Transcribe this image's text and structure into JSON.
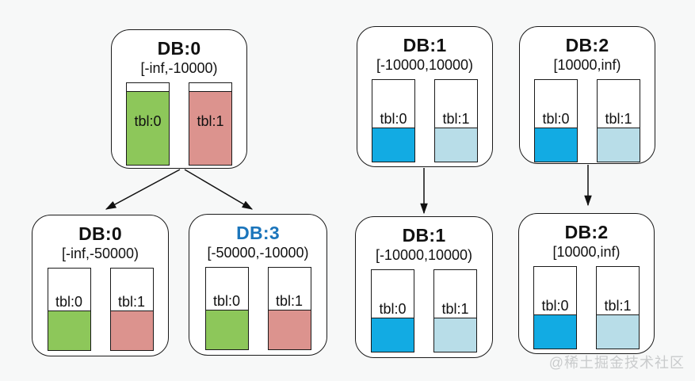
{
  "colors": {
    "green": "#8dc75a",
    "pink": "#dc938e",
    "blue": "#12abe3",
    "light_blue": "#b8dde8",
    "db3_title_blue": "#1b75bb",
    "background": "#f7f8f8",
    "box_border": "#1a1a1a"
  },
  "nodes": {
    "top_db0": {
      "title": "DB:0",
      "range": "[-inf,-10000)",
      "tables": [
        {
          "label": "tbl:0",
          "color": "#8dc75a",
          "fill_pct": 90
        },
        {
          "label": "tbl:1",
          "color": "#dc938e",
          "fill_pct": 90
        }
      ]
    },
    "top_db1": {
      "title": "DB:1",
      "range": "[-10000,10000)",
      "tables": [
        {
          "label": "tbl:0",
          "color": "#12abe3",
          "fill_pct": 42
        },
        {
          "label": "tbl:1",
          "color": "#b8dde8",
          "fill_pct": 42
        }
      ]
    },
    "top_db2": {
      "title": "DB:2",
      "range": "[10000,inf)",
      "tables": [
        {
          "label": "tbl:0",
          "color": "#12abe3",
          "fill_pct": 42
        },
        {
          "label": "tbl:1",
          "color": "#b8dde8",
          "fill_pct": 42
        }
      ]
    },
    "bottom_db0": {
      "title": "DB:0",
      "range": "[-inf,-50000)",
      "tables": [
        {
          "label": "tbl:0",
          "color": "#8dc75a",
          "fill_pct": 49
        },
        {
          "label": "tbl:1",
          "color": "#dc938e",
          "fill_pct": 49
        }
      ]
    },
    "bottom_db3": {
      "title": "DB:3",
      "title_color": "#1b75bb",
      "range": "[-50000,-10000)",
      "tables": [
        {
          "label": "tbl:0",
          "color": "#8dc75a",
          "fill_pct": 49
        },
        {
          "label": "tbl:1",
          "color": "#dc938e",
          "fill_pct": 49
        }
      ]
    },
    "bottom_db1": {
      "title": "DB:1",
      "range": "[-10000,10000)",
      "tables": [
        {
          "label": "tbl:0",
          "color": "#12abe3",
          "fill_pct": 42
        },
        {
          "label": "tbl:1",
          "color": "#b8dde8",
          "fill_pct": 42
        }
      ]
    },
    "bottom_db2": {
      "title": "DB:2",
      "range": "[10000,inf)",
      "tables": [
        {
          "label": "tbl:0",
          "color": "#12abe3",
          "fill_pct": 42
        },
        {
          "label": "tbl:1",
          "color": "#b8dde8",
          "fill_pct": 42
        }
      ]
    }
  },
  "edges": [
    {
      "from": "top_db0",
      "to": "bottom_db0"
    },
    {
      "from": "top_db0",
      "to": "bottom_db3"
    },
    {
      "from": "top_db1",
      "to": "bottom_db1"
    },
    {
      "from": "top_db2",
      "to": "bottom_db2"
    }
  ],
  "watermark": "@稀土掘金技术社区"
}
